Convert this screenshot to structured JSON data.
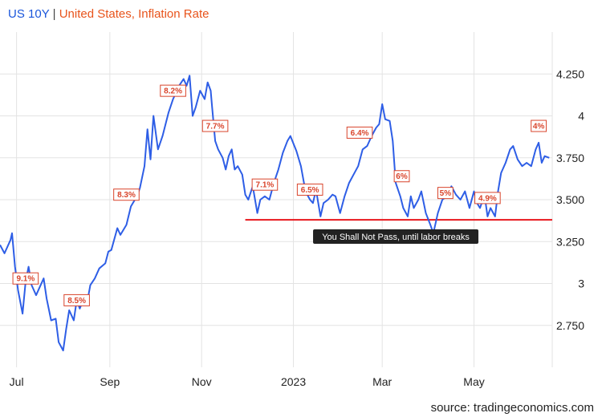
{
  "header": {
    "title_primary": "US 10Y",
    "separator": "|",
    "title_secondary": "United States, Inflation Rate"
  },
  "footer": {
    "source": "source: tradingeconomics.com"
  },
  "colors": {
    "line": "#2e5ee6",
    "support": "#e8171c",
    "label": "#d9442b",
    "grid": "#e3e3e3"
  },
  "chart_data": {
    "type": "line",
    "title": "US 10Y | United States, Inflation Rate",
    "xlabel": "",
    "ylabel": "",
    "x_axis": {
      "range": [
        "2022-06-20",
        "2023-06-22"
      ],
      "ticks": [
        {
          "date": "2022-07-01",
          "label": "Jul"
        },
        {
          "date": "2022-09-01",
          "label": "Sep"
        },
        {
          "date": "2022-11-01",
          "label": "Nov"
        },
        {
          "date": "2023-01-01",
          "label": "2023"
        },
        {
          "date": "2023-03-01",
          "label": "Mar"
        },
        {
          "date": "2023-05-01",
          "label": "May"
        }
      ]
    },
    "y_axis": {
      "range": [
        2.5,
        4.5
      ],
      "ticks": [
        {
          "value": 2.75,
          "label": "2.750"
        },
        {
          "value": 3.0,
          "label": "3"
        },
        {
          "value": 3.25,
          "label": "3.250"
        },
        {
          "value": 3.5,
          "label": "3.500"
        },
        {
          "value": 3.75,
          "label": "3.750"
        },
        {
          "value": 4.0,
          "label": "4"
        },
        {
          "value": 4.25,
          "label": "4.250"
        }
      ],
      "position": "right",
      "grid": true
    },
    "series": [
      {
        "name": "US 10Y",
        "points": [
          [
            "2022-06-20",
            3.23
          ],
          [
            "2022-06-23",
            3.18
          ],
          [
            "2022-06-27",
            3.26
          ],
          [
            "2022-06-28",
            3.3
          ],
          [
            "2022-06-30",
            3.1
          ],
          [
            "2022-07-02",
            2.96
          ],
          [
            "2022-07-05",
            2.82
          ],
          [
            "2022-07-07",
            3.01
          ],
          [
            "2022-07-09",
            3.1
          ],
          [
            "2022-07-11",
            2.99
          ],
          [
            "2022-07-14",
            2.93
          ],
          [
            "2022-07-16",
            2.97
          ],
          [
            "2022-07-19",
            3.03
          ],
          [
            "2022-07-21",
            2.91
          ],
          [
            "2022-07-24",
            2.78
          ],
          [
            "2022-07-27",
            2.79
          ],
          [
            "2022-07-29",
            2.65
          ],
          [
            "2022-08-01",
            2.6
          ],
          [
            "2022-08-03",
            2.73
          ],
          [
            "2022-08-05",
            2.84
          ],
          [
            "2022-08-08",
            2.78
          ],
          [
            "2022-08-10",
            2.9
          ],
          [
            "2022-08-12",
            2.85
          ],
          [
            "2022-08-15",
            2.92
          ],
          [
            "2022-08-17",
            2.89
          ],
          [
            "2022-08-19",
            2.99
          ],
          [
            "2022-08-22",
            3.03
          ],
          [
            "2022-08-25",
            3.09
          ],
          [
            "2022-08-29",
            3.12
          ],
          [
            "2022-08-31",
            3.19
          ],
          [
            "2022-09-02",
            3.2
          ],
          [
            "2022-09-06",
            3.33
          ],
          [
            "2022-09-08",
            3.29
          ],
          [
            "2022-09-12",
            3.35
          ],
          [
            "2022-09-15",
            3.46
          ],
          [
            "2022-09-19",
            3.52
          ],
          [
            "2022-09-21",
            3.57
          ],
          [
            "2022-09-24",
            3.7
          ],
          [
            "2022-09-26",
            3.92
          ],
          [
            "2022-09-28",
            3.74
          ],
          [
            "2022-09-30",
            4.0
          ],
          [
            "2022-10-03",
            3.8
          ],
          [
            "2022-10-06",
            3.88
          ],
          [
            "2022-10-10",
            4.02
          ],
          [
            "2022-10-13",
            4.1
          ],
          [
            "2022-10-17",
            4.18
          ],
          [
            "2022-10-20",
            4.22
          ],
          [
            "2022-10-22",
            4.18
          ],
          [
            "2022-10-24",
            4.24
          ],
          [
            "2022-10-26",
            4.0
          ],
          [
            "2022-10-28",
            4.05
          ],
          [
            "2022-10-31",
            4.15
          ],
          [
            "2022-11-03",
            4.1
          ],
          [
            "2022-11-05",
            4.2
          ],
          [
            "2022-11-07",
            4.15
          ],
          [
            "2022-11-08",
            4.05
          ],
          [
            "2022-11-10",
            3.85
          ],
          [
            "2022-11-12",
            3.8
          ],
          [
            "2022-11-15",
            3.75
          ],
          [
            "2022-11-17",
            3.68
          ],
          [
            "2022-11-19",
            3.76
          ],
          [
            "2022-11-21",
            3.8
          ],
          [
            "2022-11-23",
            3.68
          ],
          [
            "2022-11-25",
            3.7
          ],
          [
            "2022-11-28",
            3.65
          ],
          [
            "2022-11-30",
            3.53
          ],
          [
            "2022-12-02",
            3.5
          ],
          [
            "2022-12-05",
            3.58
          ],
          [
            "2022-12-08",
            3.42
          ],
          [
            "2022-12-10",
            3.5
          ],
          [
            "2022-12-13",
            3.52
          ],
          [
            "2022-12-16",
            3.5
          ],
          [
            "2022-12-19",
            3.6
          ],
          [
            "2022-12-22",
            3.68
          ],
          [
            "2022-12-25",
            3.78
          ],
          [
            "2022-12-28",
            3.85
          ],
          [
            "2022-12-30",
            3.88
          ],
          [
            "2023-01-03",
            3.79
          ],
          [
            "2023-01-06",
            3.7
          ],
          [
            "2023-01-09",
            3.55
          ],
          [
            "2023-01-12",
            3.5
          ],
          [
            "2023-01-14",
            3.48
          ],
          [
            "2023-01-16",
            3.56
          ],
          [
            "2023-01-19",
            3.4
          ],
          [
            "2023-01-21",
            3.48
          ],
          [
            "2023-01-24",
            3.5
          ],
          [
            "2023-01-27",
            3.53
          ],
          [
            "2023-01-29",
            3.52
          ],
          [
            "2023-02-01",
            3.42
          ],
          [
            "2023-02-04",
            3.52
          ],
          [
            "2023-02-07",
            3.6
          ],
          [
            "2023-02-10",
            3.65
          ],
          [
            "2023-02-13",
            3.7
          ],
          [
            "2023-02-16",
            3.8
          ],
          [
            "2023-02-19",
            3.82
          ],
          [
            "2023-02-22",
            3.88
          ],
          [
            "2023-02-25",
            3.93
          ],
          [
            "2023-02-27",
            3.95
          ],
          [
            "2023-03-01",
            4.07
          ],
          [
            "2023-03-03",
            3.98
          ],
          [
            "2023-03-06",
            3.97
          ],
          [
            "2023-03-08",
            3.85
          ],
          [
            "2023-03-10",
            3.6
          ],
          [
            "2023-03-13",
            3.52
          ],
          [
            "2023-03-15",
            3.45
          ],
          [
            "2023-03-18",
            3.4
          ],
          [
            "2023-03-20",
            3.52
          ],
          [
            "2023-03-22",
            3.45
          ],
          [
            "2023-03-25",
            3.5
          ],
          [
            "2023-03-27",
            3.55
          ],
          [
            "2023-03-30",
            3.42
          ],
          [
            "2023-04-02",
            3.35
          ],
          [
            "2023-04-04",
            3.3
          ],
          [
            "2023-04-07",
            3.42
          ],
          [
            "2023-04-10",
            3.5
          ],
          [
            "2023-04-13",
            3.52
          ],
          [
            "2023-04-16",
            3.58
          ],
          [
            "2023-04-19",
            3.53
          ],
          [
            "2023-04-22",
            3.5
          ],
          [
            "2023-04-25",
            3.55
          ],
          [
            "2023-04-28",
            3.45
          ],
          [
            "2023-05-01",
            3.55
          ],
          [
            "2023-05-03",
            3.48
          ],
          [
            "2023-05-05",
            3.45
          ],
          [
            "2023-05-08",
            3.53
          ],
          [
            "2023-05-10",
            3.4
          ],
          [
            "2023-05-12",
            3.45
          ],
          [
            "2023-05-15",
            3.4
          ],
          [
            "2023-05-17",
            3.55
          ],
          [
            "2023-05-19",
            3.66
          ],
          [
            "2023-05-22",
            3.72
          ],
          [
            "2023-05-25",
            3.8
          ],
          [
            "2023-05-27",
            3.82
          ],
          [
            "2023-05-30",
            3.74
          ],
          [
            "2023-06-02",
            3.7
          ],
          [
            "2023-06-05",
            3.72
          ],
          [
            "2023-06-08",
            3.7
          ],
          [
            "2023-06-11",
            3.8
          ],
          [
            "2023-06-13",
            3.84
          ],
          [
            "2023-06-15",
            3.72
          ],
          [
            "2023-06-17",
            3.76
          ],
          [
            "2023-06-20",
            3.75
          ]
        ]
      }
    ],
    "support_line": {
      "value": 3.38,
      "from": "2022-11-30",
      "to": "2023-06-22"
    },
    "annotations": [
      {
        "label": "9.1%",
        "date": "2022-07-07",
        "value": 3.03
      },
      {
        "label": "8.5%",
        "date": "2022-08-10",
        "value": 2.9
      },
      {
        "label": "8.3%",
        "date": "2022-09-12",
        "value": 3.53
      },
      {
        "label": "8.2%",
        "date": "2022-10-13",
        "value": 4.15
      },
      {
        "label": "7.7%",
        "date": "2022-11-10",
        "value": 3.94
      },
      {
        "label": "7.1%",
        "date": "2022-12-13",
        "value": 3.59
      },
      {
        "label": "6.5%",
        "date": "2023-01-12",
        "value": 3.56
      },
      {
        "label": "6.4%",
        "date": "2023-02-14",
        "value": 3.9
      },
      {
        "label": "6%",
        "date": "2023-03-14",
        "value": 3.64
      },
      {
        "label": "5%",
        "date": "2023-04-12",
        "value": 3.54
      },
      {
        "label": "4.9%",
        "date": "2023-05-10",
        "value": 3.51
      },
      {
        "label": "4%",
        "date": "2023-06-13",
        "value": 3.94
      }
    ],
    "note": {
      "text": "You Shall Not Pass, until labor breaks",
      "date": "2023-03-10",
      "value": 3.28
    }
  }
}
